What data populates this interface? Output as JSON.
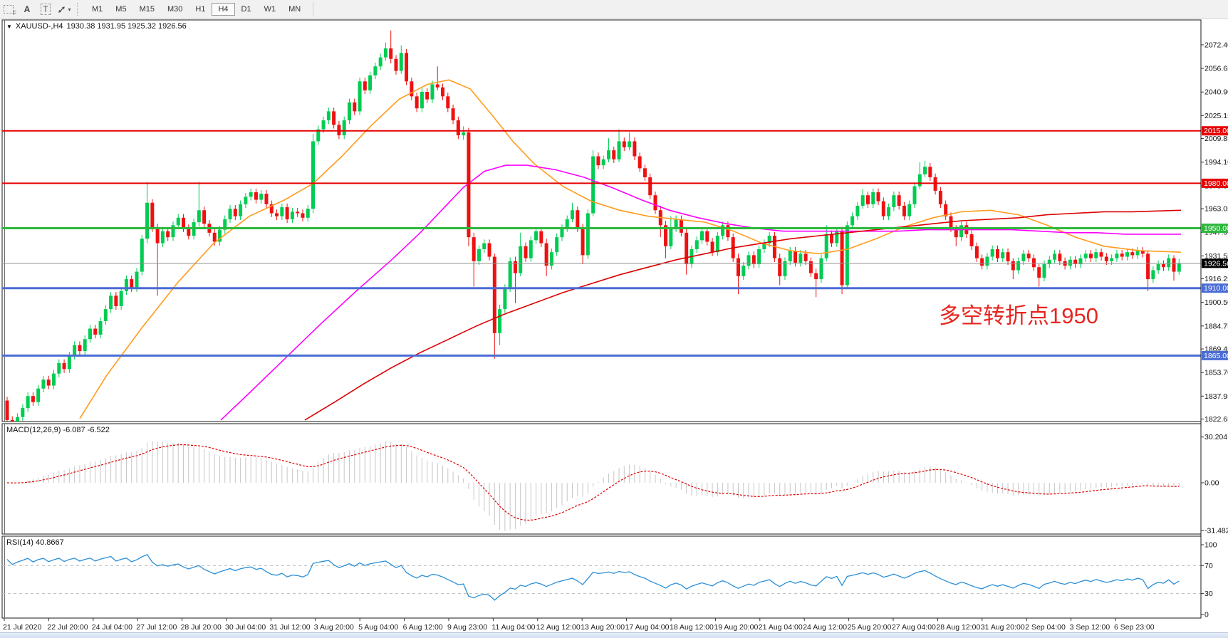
{
  "toolbar": {
    "tools": [
      {
        "name": "grid-marquee-icon",
        "glyph": "F"
      },
      {
        "name": "text-label-icon",
        "glyph": "A"
      },
      {
        "name": "text-box-icon",
        "glyph": "T"
      },
      {
        "name": "diagonal-arrows-icon",
        "glyph": ""
      }
    ],
    "dropdown_caret": "▾",
    "timeframes": [
      "M1",
      "M5",
      "M15",
      "M30",
      "H1",
      "H4",
      "D1",
      "W1",
      "MN"
    ],
    "active_timeframe": "H4"
  },
  "header": {
    "dropdown_caret": "▼",
    "title": "XAUUSD-,H4",
    "ohlc": "1930.38 1931.95 1925.32 1926.56"
  },
  "annotation": {
    "text": "多空转折点1950",
    "color": "#e8251f"
  },
  "indicators": {
    "macd_label": "MACD(12,26,9) -6.087 -6.522",
    "rsi_label": "RSI(14) 40.8667"
  },
  "colors": {
    "bull": "#00cc52",
    "bear": "#ee1111",
    "hline_red": "#e60000",
    "hline_green": "#2db83d",
    "hline_blue": "#4a6cd4",
    "current_line": "#909090",
    "current_badge": "#000000",
    "macd_hist": "#c6c6c6",
    "macd_signal": "#dd0000",
    "rsi_line": "#2a8fd8",
    "rsi_levels": "#bbbbbb",
    "ma_orange": "#ff9b1c",
    "ma_magenta": "#ff00ff",
    "ma_red": "#dd0000"
  },
  "chart_data": {
    "type": "candlestick",
    "symbol": "XAUUSD",
    "timeframe": "H4",
    "title": "XAUUSD-,H4 1930.38 1931.95 1925.32 1926.56",
    "ylim": [
      1821,
      2089
    ],
    "grid": false,
    "open_first": 1835,
    "default_wick": 2.5,
    "closes": [
      1822,
      1817,
      1824,
      1830,
      1838,
      1834,
      1843,
      1849,
      1845,
      1853,
      1860,
      1856,
      1865,
      1872,
      1868,
      1876,
      1883,
      1879,
      1888,
      1896,
      1905,
      1898,
      1908,
      1916,
      1910,
      1921,
      1943,
      1967,
      1950,
      1940,
      1948,
      1944,
      1952,
      1957,
      1950,
      1945,
      1954,
      1962,
      1953,
      1947,
      1941,
      1949,
      1956,
      1963,
      1958,
      1966,
      1971,
      1974,
      1969,
      1973,
      1966,
      1960,
      1958,
      1964,
      1956,
      1961,
      1960,
      1957,
      1963,
      2008,
      2016,
      2022,
      2028,
      2019,
      2012,
      2022,
      2034,
      2028,
      2048,
      2042,
      2052,
      2058,
      2064,
      2070,
      2063,
      2055,
      2067,
      2048,
      2038,
      2030,
      2041,
      2036,
      2046,
      2044,
      2038,
      2030,
      2022,
      2012,
      2014,
      1944,
      1928,
      1936,
      1940,
      1931,
      1880,
      1896,
      1910,
      1928,
      1920,
      1938,
      1930,
      1942,
      1948,
      1940,
      1925,
      1934,
      1944,
      1950,
      1956,
      1962,
      1950,
      1932,
      1960,
      1998,
      1992,
      1996,
      2002,
      1996,
      2008,
      2004,
      2008,
      1998,
      1990,
      1984,
      1972,
      1962,
      1952,
      1938,
      1950,
      1956,
      1947,
      1926,
      1936,
      1942,
      1948,
      1941,
      1934,
      1945,
      1952,
      1944,
      1930,
      1918,
      1925,
      1932,
      1926,
      1936,
      1940,
      1945,
      1930,
      1918,
      1928,
      1935,
      1927,
      1933,
      1928,
      1920,
      1916,
      1930,
      1946,
      1940,
      1948,
      1912,
      1952,
      1958,
      1965,
      1972,
      1966,
      1974,
      1968,
      1958,
      1964,
      1972,
      1965,
      1958,
      1966,
      1978,
      1986,
      1991,
      1984,
      1975,
      1966,
      1958,
      1950,
      1944,
      1952,
      1946,
      1938,
      1930,
      1925,
      1931,
      1936,
      1930,
      1934,
      1928,
      1922,
      1928,
      1933,
      1930,
      1924,
      1917,
      1926,
      1929,
      1933,
      1928,
      1925,
      1929,
      1926,
      1930,
      1933,
      1930,
      1934,
      1931,
      1928,
      1930,
      1933,
      1931,
      1934,
      1932,
      1935,
      1933,
      1916,
      1922,
      1926,
      1924,
      1930,
      1921,
      1926.56
    ],
    "wick_overrides": {
      "27": [
        14,
        3
      ],
      "29": [
        3,
        35
      ],
      "37": [
        19,
        3
      ],
      "59": [
        5,
        3
      ],
      "73": [
        4,
        2
      ],
      "74": [
        12,
        3
      ],
      "76": [
        5,
        2
      ],
      "83": [
        12,
        2
      ],
      "88": [
        4,
        3
      ],
      "89": [
        3,
        6
      ],
      "90": [
        3,
        17
      ],
      "94": [
        2,
        17
      ],
      "95": [
        3,
        8
      ],
      "98": [
        3,
        20
      ],
      "99": [
        9,
        2
      ],
      "104": [
        3,
        7
      ],
      "109": [
        5,
        2
      ],
      "111": [
        3,
        6
      ],
      "113": [
        4,
        2
      ],
      "116": [
        8,
        2
      ],
      "118": [
        8,
        2
      ],
      "120": [
        6,
        2
      ],
      "126": [
        3,
        8
      ],
      "127": [
        3,
        8
      ],
      "128": [
        8,
        2
      ],
      "131": [
        3,
        7
      ],
      "141": [
        3,
        12
      ],
      "149": [
        3,
        6
      ],
      "156": [
        3,
        12
      ],
      "158": [
        6,
        2
      ],
      "161": [
        3,
        6
      ],
      "165": [
        4,
        2
      ],
      "176": [
        8,
        2
      ],
      "177": [
        4,
        2
      ],
      "183": [
        2,
        6
      ],
      "194": [
        2,
        6
      ],
      "199": [
        2,
        6
      ],
      "220": [
        2,
        8
      ],
      "225": [
        2,
        6
      ],
      "226": [
        3,
        2
      ]
    },
    "current_price": {
      "value": 1926.56,
      "label": "1926.56"
    },
    "hlines": [
      {
        "price": 2015.0,
        "label": "2015.00",
        "color": "#e60000",
        "width": 2
      },
      {
        "price": 1980.0,
        "label": "1980.00",
        "color": "#e60000",
        "width": 2
      },
      {
        "price": 1950.0,
        "label": "1950.00",
        "color": "#2db83d",
        "width": 3
      },
      {
        "price": 1910.0,
        "label": "1910.00",
        "color": "#4a6cd4",
        "width": 3
      },
      {
        "price": 1865.0,
        "label": "1865.00",
        "color": "#4a6cd4",
        "width": 3
      }
    ],
    "price_ticks": [
      "2072.40",
      "2056.65",
      "2040.90",
      "2025.15",
      "2009.85",
      "1994.10",
      "1978.35",
      "1963.05",
      "1947.30",
      "1931.55",
      "1916.25",
      "1900.50",
      "1884.75",
      "1869.45",
      "1853.70",
      "1837.95",
      "1822.65"
    ],
    "time_labels": [
      "21 Jul 2020",
      "22 Jul 20:00",
      "24 Jul 04:00",
      "27 Jul 12:00",
      "28 Jul 20:00",
      "30 Jul 04:00",
      "31 Jul 12:00",
      "3 Aug 20:00",
      "5 Aug 04:00",
      "6 Aug 12:00",
      "9 Aug 23:00",
      "11 Aug 04:00",
      "12 Aug 12:00",
      "13 Aug 20:00",
      "17 Aug 04:00",
      "18 Aug 12:00",
      "19 Aug 20:00",
      "21 Aug 04:00",
      "24 Aug 12:00",
      "25 Aug 20:00",
      "27 Aug 04:00",
      "28 Aug 12:00",
      "31 Aug 20:00",
      "2 Sep 04:00",
      "3 Sep 12:00",
      "6 Sep 23:00"
    ],
    "moving_averages": [
      {
        "name": "ma-orange",
        "color": "#ff9b1c",
        "points": [
          [
            112,
            1823
          ],
          [
            150,
            1852
          ],
          [
            200,
            1884
          ],
          [
            250,
            1914
          ],
          [
            300,
            1940
          ],
          [
            350,
            1958
          ],
          [
            400,
            1969
          ],
          [
            440,
            1980
          ],
          [
            480,
            1998
          ],
          [
            520,
            2018
          ],
          [
            560,
            2036
          ],
          [
            600,
            2046
          ],
          [
            630,
            2049
          ],
          [
            660,
            2043
          ],
          [
            690,
            2026
          ],
          [
            720,
            2008
          ],
          [
            750,
            1993
          ],
          [
            790,
            1978
          ],
          [
            830,
            1968
          ],
          [
            870,
            1962
          ],
          [
            910,
            1958
          ],
          [
            950,
            1956
          ],
          [
            990,
            1954
          ],
          [
            1030,
            1948
          ],
          [
            1070,
            1940
          ],
          [
            1110,
            1935
          ],
          [
            1150,
            1933
          ],
          [
            1190,
            1936
          ],
          [
            1230,
            1943
          ],
          [
            1270,
            1951
          ],
          [
            1310,
            1957
          ],
          [
            1350,
            1961
          ],
          [
            1390,
            1962
          ],
          [
            1430,
            1959
          ],
          [
            1470,
            1952
          ],
          [
            1510,
            1944
          ],
          [
            1550,
            1938
          ],
          [
            1600,
            1935
          ],
          [
            1658,
            1934
          ]
        ]
      },
      {
        "name": "ma-magenta",
        "color": "#ff00ff",
        "points": [
          [
            310,
            1822
          ],
          [
            350,
            1840
          ],
          [
            400,
            1863
          ],
          [
            450,
            1886
          ],
          [
            500,
            1908
          ],
          [
            550,
            1929
          ],
          [
            590,
            1947
          ],
          [
            620,
            1962
          ],
          [
            650,
            1977
          ],
          [
            680,
            1988
          ],
          [
            710,
            1992
          ],
          [
            740,
            1992
          ],
          [
            780,
            1989
          ],
          [
            820,
            1984
          ],
          [
            860,
            1977
          ],
          [
            900,
            1969
          ],
          [
            940,
            1962
          ],
          [
            980,
            1957
          ],
          [
            1020,
            1953
          ],
          [
            1060,
            1950
          ],
          [
            1100,
            1948
          ],
          [
            1140,
            1948
          ],
          [
            1180,
            1948
          ],
          [
            1220,
            1948
          ],
          [
            1260,
            1948
          ],
          [
            1300,
            1949
          ],
          [
            1340,
            1949
          ],
          [
            1380,
            1949
          ],
          [
            1420,
            1949
          ],
          [
            1460,
            1948
          ],
          [
            1500,
            1947
          ],
          [
            1540,
            1947
          ],
          [
            1580,
            1946
          ],
          [
            1620,
            1946
          ],
          [
            1658,
            1946
          ]
        ]
      },
      {
        "name": "ma-red",
        "color": "#dd0000",
        "points": [
          [
            428,
            1822
          ],
          [
            470,
            1834
          ],
          [
            510,
            1846
          ],
          [
            550,
            1857
          ],
          [
            590,
            1867
          ],
          [
            630,
            1876
          ],
          [
            670,
            1885
          ],
          [
            710,
            1893
          ],
          [
            750,
            1900
          ],
          [
            790,
            1907
          ],
          [
            830,
            1913
          ],
          [
            870,
            1919
          ],
          [
            910,
            1924
          ],
          [
            950,
            1929
          ],
          [
            990,
            1933
          ],
          [
            1030,
            1937
          ],
          [
            1070,
            1940
          ],
          [
            1110,
            1943
          ],
          [
            1150,
            1945
          ],
          [
            1190,
            1947
          ],
          [
            1230,
            1949
          ],
          [
            1270,
            1951
          ],
          [
            1310,
            1953
          ],
          [
            1350,
            1955
          ],
          [
            1390,
            1956
          ],
          [
            1430,
            1957
          ],
          [
            1470,
            1959
          ],
          [
            1510,
            1960
          ],
          [
            1550,
            1961
          ],
          [
            1590,
            1961
          ],
          [
            1658,
            1962
          ]
        ]
      }
    ],
    "macd": {
      "params": [
        12,
        26,
        9
      ],
      "value": -6.087,
      "signal": -6.522,
      "ticks": [
        "30.204",
        "0.00",
        "-31.482"
      ]
    },
    "rsi": {
      "period": 14,
      "value": 40.8667,
      "levels": [
        70,
        30
      ],
      "ticks": [
        "100",
        "70",
        "30",
        "0"
      ]
    }
  }
}
